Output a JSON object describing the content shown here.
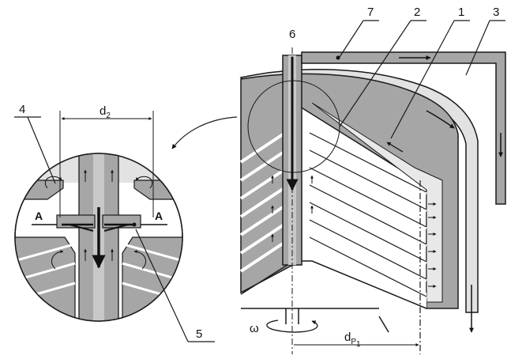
{
  "callouts": {
    "c1": "1",
    "c2": "2",
    "c3": "3",
    "c4": "4",
    "c5": "5",
    "c6": "6",
    "c7": "7"
  },
  "dimensions": {
    "d2_main": "d",
    "d2_sub": "2",
    "dp_main": "d",
    "dp_sub": "P",
    "dp_subsub": "1"
  },
  "section_marks": {
    "left": "A",
    "right": "A"
  },
  "rotation_symbol": "ω",
  "colors": {
    "gray_fill": "#a6a6a6",
    "light_fill": "#e2e2e2",
    "outline": "#1a1a1a",
    "background": "#ffffff"
  }
}
